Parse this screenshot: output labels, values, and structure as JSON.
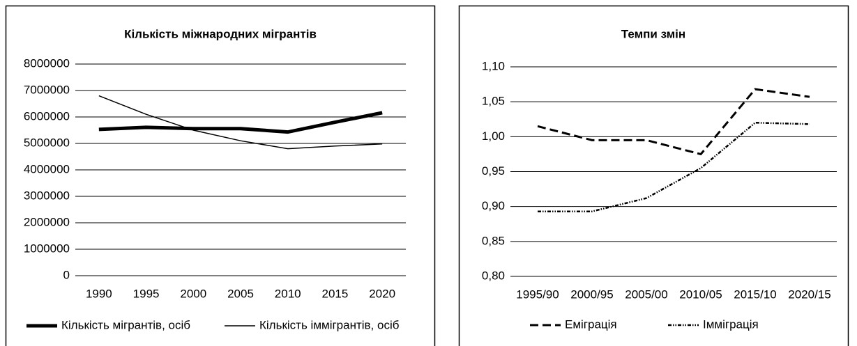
{
  "chart_data": [
    {
      "type": "line",
      "title": "Кількість міжнародних мігрантів",
      "categories": [
        "1990",
        "1995",
        "2000",
        "2005",
        "2010",
        "2015",
        "2020"
      ],
      "series": [
        {
          "name": "Кількість мігрантів, осіб",
          "color": "#000000",
          "style": "thick",
          "values": [
            5530000,
            5610000,
            5560000,
            5560000,
            5430000,
            5800000,
            6160000
          ]
        },
        {
          "name": "Кількість іммігрантів, осіб",
          "color": "#000000",
          "style": "thin",
          "values": [
            6800000,
            6100000,
            5500000,
            5100000,
            4800000,
            4900000,
            4980000
          ]
        }
      ],
      "ylim": [
        0,
        8000000
      ],
      "yticks": [
        0,
        1000000,
        2000000,
        3000000,
        4000000,
        5000000,
        6000000,
        7000000,
        8000000
      ],
      "grid": true,
      "legend": "bottom"
    },
    {
      "type": "line",
      "title": "Темпи змін",
      "categories": [
        "1995/90",
        "2000/95",
        "2005/00",
        "2010/05",
        "2015/10",
        "2020/15"
      ],
      "series": [
        {
          "name": "Еміграція",
          "color": "#000000",
          "style": "dashed",
          "values": [
            1.015,
            0.995,
            0.995,
            0.975,
            1.068,
            1.057
          ]
        },
        {
          "name": "Імміграція",
          "color": "#000000",
          "style": "dotted",
          "values": [
            0.893,
            0.893,
            0.912,
            0.955,
            1.02,
            1.018
          ]
        }
      ],
      "ylim": [
        0.8,
        1.1
      ],
      "yticks": [
        {
          "value": 0.8,
          "label": "0,80"
        },
        {
          "value": 0.85,
          "label": "0,85"
        },
        {
          "value": 0.9,
          "label": "0,90"
        },
        {
          "value": 0.95,
          "label": "0,95"
        },
        {
          "value": 1.0,
          "label": "1,00"
        },
        {
          "value": 1.05,
          "label": "1,05"
        },
        {
          "value": 1.1,
          "label": "1,10"
        }
      ],
      "grid": true,
      "legend": "bottom"
    }
  ]
}
